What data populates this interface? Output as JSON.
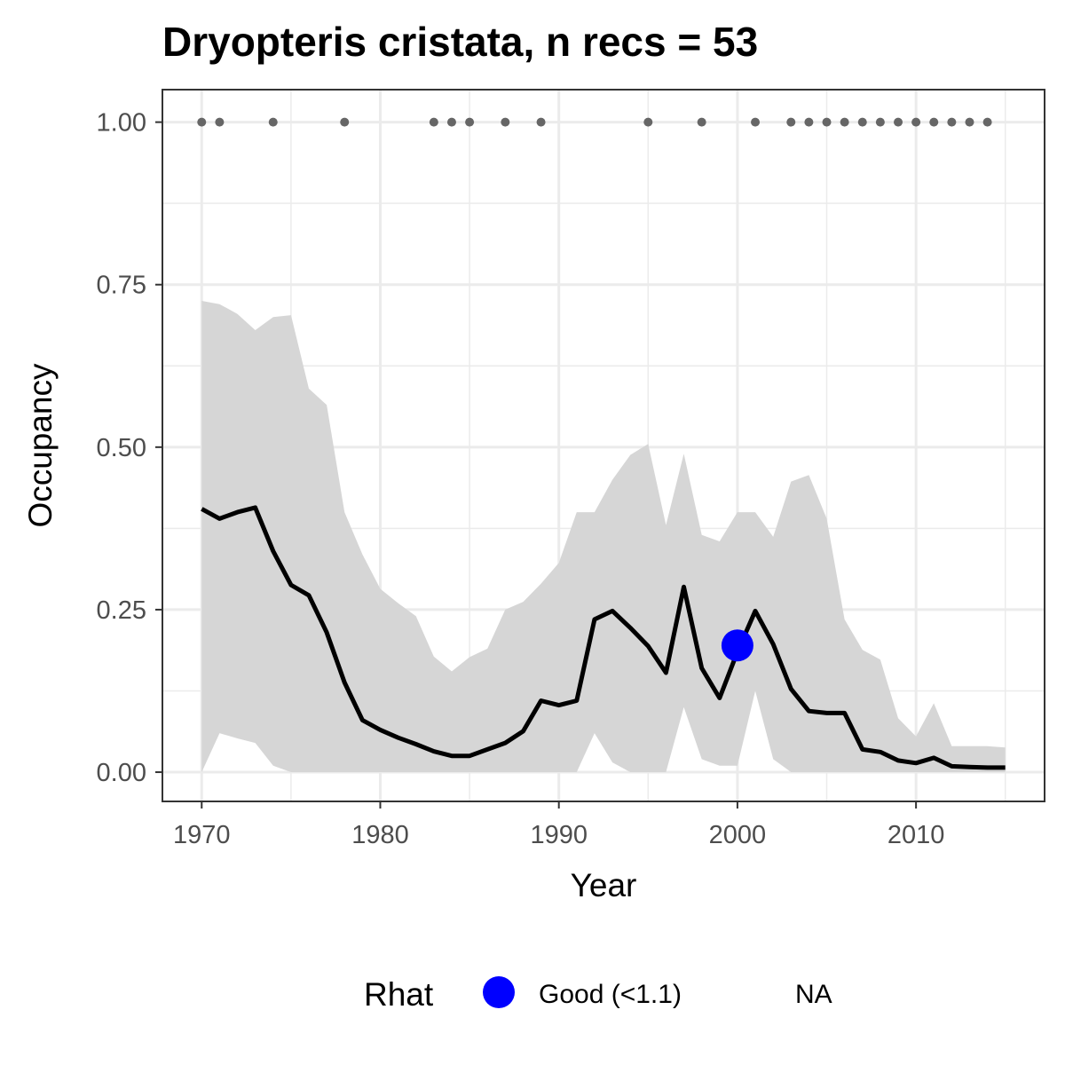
{
  "chart_data": {
    "type": "line",
    "title": "Dryopteris cristata, n recs = 53",
    "xlabel": "Year",
    "ylabel": "Occupancy",
    "xlim": [
      1967.8,
      2017.2
    ],
    "ylim": [
      -0.045,
      1.05
    ],
    "x_ticks": [
      1970,
      1980,
      1990,
      2000,
      2010
    ],
    "y_ticks": [
      0.0,
      0.25,
      0.5,
      0.75,
      1.0
    ],
    "x_tick_labels": [
      "1970",
      "1980",
      "1990",
      "2000",
      "2010"
    ],
    "y_tick_labels": [
      "0.00",
      "0.25",
      "0.50",
      "0.75",
      "1.00"
    ],
    "grid": true,
    "legend_position": "bottom",
    "colors": {
      "line": "#000000",
      "ribbon": "#d6d6d6",
      "record_points": "#666666",
      "rhat_good": "#0000ff",
      "panel_border": "#333333",
      "grid_major": "#ebebeb"
    },
    "series": {
      "years": [
        1970,
        1971,
        1972,
        1973,
        1974,
        1975,
        1976,
        1977,
        1978,
        1979,
        1980,
        1981,
        1982,
        1983,
        1984,
        1985,
        1986,
        1987,
        1988,
        1989,
        1990,
        1991,
        1992,
        1993,
        1994,
        1995,
        1996,
        1997,
        1998,
        1999,
        2000,
        2001,
        2002,
        2003,
        2004,
        2005,
        2006,
        2007,
        2008,
        2009,
        2010,
        2011,
        2012,
        2013,
        2014,
        2015
      ],
      "mean": [
        0.405,
        0.39,
        0.4,
        0.407,
        0.34,
        0.288,
        0.272,
        0.215,
        0.138,
        0.08,
        0.065,
        0.053,
        0.043,
        0.032,
        0.025,
        0.025,
        0.035,
        0.045,
        0.063,
        0.11,
        0.103,
        0.11,
        0.235,
        0.248,
        0.222,
        0.194,
        0.153,
        0.285,
        0.16,
        0.114,
        0.185,
        0.248,
        0.197,
        0.128,
        0.094,
        0.091,
        0.091,
        0.035,
        0.031,
        0.018,
        0.014,
        0.022,
        0.009,
        0.008,
        0.007,
        0.007
      ],
      "lower": [
        0.0,
        0.06,
        0.052,
        0.045,
        0.01,
        0.0,
        0.0,
        0.0,
        0.0,
        0.0,
        0.0,
        0.0,
        0.0,
        0.0,
        0.0,
        0.0,
        0.0,
        0.0,
        0.0,
        0.0,
        0.0,
        0.0,
        0.06,
        0.015,
        0.0,
        0.0,
        0.0,
        0.1,
        0.02,
        0.01,
        0.01,
        0.125,
        0.02,
        0.0,
        0.0,
        0.0,
        0.0,
        0.0,
        0.0,
        0.0,
        0.0,
        0.0,
        0.0,
        0.0,
        0.0,
        0.0
      ],
      "upper": [
        0.725,
        0.72,
        0.705,
        0.68,
        0.7,
        0.703,
        0.59,
        0.565,
        0.4,
        0.335,
        0.282,
        0.26,
        0.24,
        0.178,
        0.155,
        0.177,
        0.19,
        0.25,
        0.262,
        0.29,
        0.322,
        0.4,
        0.4,
        0.45,
        0.488,
        0.505,
        0.38,
        0.49,
        0.365,
        0.355,
        0.4,
        0.4,
        0.362,
        0.447,
        0.457,
        0.39,
        0.235,
        0.188,
        0.173,
        0.083,
        0.055,
        0.106,
        0.04,
        0.04,
        0.04,
        0.038
      ]
    },
    "record_years": [
      1970,
      1971,
      1974,
      1978,
      1983,
      1984,
      1985,
      1987,
      1989,
      1995,
      1998,
      2001,
      2003,
      2004,
      2005,
      2006,
      2007,
      2008,
      2009,
      2010,
      2011,
      2012,
      2013,
      2014
    ],
    "record_y": 1.0,
    "rhat_points": [
      {
        "year": 2000,
        "value": 0.195,
        "category": "Good (<1.1)"
      }
    ],
    "legend": {
      "title": "Rhat",
      "items": [
        {
          "label": "Good (<1.1)",
          "color": "#0000ff"
        },
        {
          "label": "NA"
        }
      ]
    }
  }
}
